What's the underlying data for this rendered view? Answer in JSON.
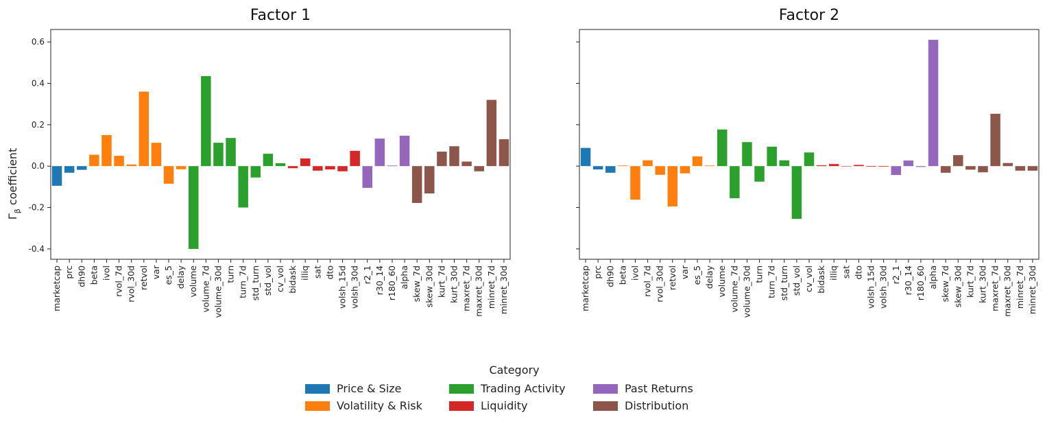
{
  "chart_data": [
    {
      "type": "bar",
      "title": "Factor 1",
      "ylabel": "Γ_β coefficient",
      "ylabel_main": "Γ",
      "ylabel_sub": "β",
      "ylabel_rest": " coefficient",
      "ylim": [
        -0.45,
        0.66
      ],
      "yticks": [
        "-0.4",
        "-0.2",
        "0.0",
        "0.2",
        "0.4",
        "0.6"
      ],
      "categories": [
        "marketcap",
        "prc",
        "dh90",
        "beta",
        "ivol",
        "rvol_7d",
        "rvol_30d",
        "retvol",
        "var",
        "es_5",
        "delay",
        "volume",
        "volume_7d",
        "volume_30d",
        "turn",
        "turn_7d",
        "std_turn",
        "std_vol",
        "cv_vol",
        "bidask",
        "illiq",
        "sat",
        "dto",
        "volsh_15d",
        "volsh_30d",
        "r2_1",
        "r30_14",
        "r180_60",
        "alpha",
        "skew_7d",
        "skew_30d",
        "kurt_7d",
        "kurt_30d",
        "maxret_7d",
        "maxret_30d",
        "minret_7d",
        "minret_30d"
      ],
      "groups": [
        0,
        0,
        0,
        1,
        1,
        1,
        1,
        1,
        1,
        1,
        1,
        2,
        2,
        2,
        2,
        2,
        2,
        2,
        2,
        3,
        3,
        3,
        3,
        3,
        3,
        4,
        4,
        4,
        4,
        5,
        5,
        5,
        5,
        5,
        5,
        5,
        5
      ],
      "values": [
        -0.095,
        -0.032,
        -0.018,
        0.055,
        0.15,
        0.05,
        0.008,
        0.36,
        0.113,
        -0.085,
        -0.015,
        -0.4,
        0.435,
        0.113,
        0.136,
        -0.2,
        -0.055,
        0.06,
        0.014,
        -0.01,
        0.037,
        -0.022,
        -0.016,
        -0.025,
        0.074,
        -0.105,
        0.133,
        0.003,
        0.147,
        -0.178,
        -0.132,
        0.07,
        0.096,
        0.022,
        -0.025,
        0.32,
        0.13
      ]
    },
    {
      "type": "bar",
      "title": "Factor 2",
      "ylim": [
        -0.45,
        0.66
      ],
      "categories": [
        "marketcap",
        "prc",
        "dh90",
        "beta",
        "ivol",
        "rvol_7d",
        "rvol_30d",
        "retvol",
        "var",
        "es_5",
        "delay",
        "volume",
        "volume_7d",
        "volume_30d",
        "turn",
        "turn_7d",
        "std_turn",
        "std_vol",
        "cv_vol",
        "bidask",
        "illiq",
        "sat",
        "dto",
        "volsh_15d",
        "volsh_30d",
        "r2_1",
        "r30_14",
        "r180_60",
        "alpha",
        "skew_7d",
        "skew_30d",
        "kurt_7d",
        "kurt_30d",
        "maxret_7d",
        "maxret_30d",
        "minret_7d",
        "minret_30d"
      ],
      "groups": [
        0,
        0,
        0,
        1,
        1,
        1,
        1,
        1,
        1,
        1,
        1,
        2,
        2,
        2,
        2,
        2,
        2,
        2,
        2,
        3,
        3,
        3,
        3,
        3,
        3,
        4,
        4,
        4,
        4,
        5,
        5,
        5,
        5,
        5,
        5,
        5,
        5
      ],
      "values": [
        0.088,
        -0.016,
        -0.032,
        0.003,
        -0.162,
        0.028,
        -0.042,
        -0.195,
        -0.035,
        0.047,
        0.003,
        0.177,
        -0.155,
        0.116,
        -0.075,
        0.094,
        0.028,
        -0.255,
        0.066,
        0.004,
        0.01,
        0.0,
        0.006,
        -0.003,
        -0.003,
        -0.043,
        0.027,
        -0.004,
        0.61,
        -0.032,
        0.053,
        -0.017,
        -0.03,
        0.253,
        0.015,
        -0.022,
        -0.022
      ]
    }
  ],
  "legend": {
    "title": "Category",
    "items": [
      {
        "label": "Price & Size",
        "color": "#1f77b4"
      },
      {
        "label": "Trading Activity",
        "color": "#2ca02c"
      },
      {
        "label": "Past Returns",
        "color": "#9467bd"
      },
      {
        "label": "Volatility & Risk",
        "color": "#ff7f0e"
      },
      {
        "label": "Liquidity",
        "color": "#d62728"
      },
      {
        "label": "Distribution",
        "color": "#8c564b"
      }
    ],
    "group_colors": [
      "#1f77b4",
      "#ff7f0e",
      "#2ca02c",
      "#d62728",
      "#9467bd",
      "#8c564b"
    ]
  }
}
